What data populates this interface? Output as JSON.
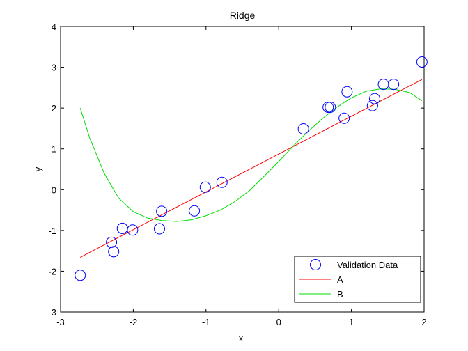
{
  "chart_data": {
    "type": "scatter",
    "title": "Ridge",
    "xlabel": "x",
    "ylabel": "y",
    "xlim": [
      -3,
      2
    ],
    "ylim": [
      -3,
      4
    ],
    "xticks": [
      -3,
      -2,
      -1,
      0,
      1,
      2
    ],
    "yticks": [
      -3,
      -2,
      -1,
      0,
      1,
      2,
      3,
      4
    ],
    "grid": false,
    "legend_position": "bottom-right",
    "series": [
      {
        "name": "Validation Data",
        "kind": "markers",
        "marker": "circle",
        "color": "#0000ff",
        "x": [
          -2.73,
          -2.3,
          -2.27,
          -2.15,
          -2.01,
          -1.64,
          -1.61,
          -1.16,
          -1.01,
          -0.78,
          0.34,
          0.68,
          0.71,
          0.9,
          0.94,
          1.29,
          1.32,
          1.44,
          1.58,
          1.97
        ],
        "y": [
          -2.1,
          -1.29,
          -1.52,
          -0.95,
          -0.99,
          -0.96,
          -0.53,
          -0.52,
          0.06,
          0.18,
          1.49,
          2.02,
          2.02,
          1.75,
          2.4,
          2.06,
          2.23,
          2.58,
          2.58,
          3.13
        ]
      },
      {
        "name": "A",
        "kind": "line",
        "color": "#ff0000",
        "x": [
          -2.73,
          1.97
        ],
        "y": [
          -1.66,
          2.7
        ]
      },
      {
        "name": "B",
        "kind": "line",
        "color": "#00dd00",
        "x": [
          -2.73,
          -2.6,
          -2.4,
          -2.2,
          -2.0,
          -1.8,
          -1.6,
          -1.4,
          -1.2,
          -1.0,
          -0.8,
          -0.6,
          -0.4,
          -0.2,
          0.0,
          0.2,
          0.4,
          0.6,
          0.8,
          1.0,
          1.2,
          1.4,
          1.6,
          1.8,
          1.97
        ],
        "y": [
          2.0,
          1.27,
          0.4,
          -0.21,
          -0.54,
          -0.7,
          -0.76,
          -0.78,
          -0.74,
          -0.64,
          -0.5,
          -0.29,
          -0.02,
          0.33,
          0.69,
          1.07,
          1.42,
          1.74,
          2.02,
          2.25,
          2.41,
          2.47,
          2.46,
          2.38,
          2.18
        ]
      }
    ]
  }
}
